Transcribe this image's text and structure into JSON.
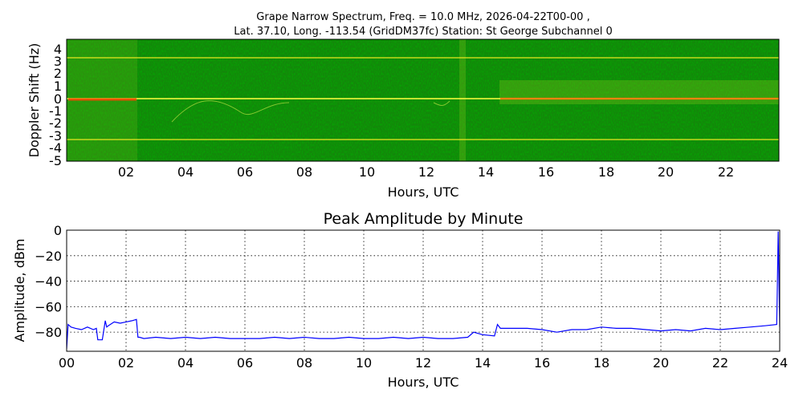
{
  "spectrogram": {
    "title_line1": "Grape Narrow Spectrum, Freq. = 10.0 MHz, 2026-04-22T00-00 ,",
    "title_line2": "Lat.  37.10, Long. -113.54 (GridDM37fc) Station: St George Subchannel 0",
    "ylabel": "Doppler Shift (Hz)",
    "xlabel": "Hours, UTC",
    "yticks": [
      "4",
      "3",
      "2",
      "1",
      "0",
      "-1",
      "-2",
      "-3",
      "-4",
      "-5"
    ],
    "xticks": [
      "02",
      "04",
      "06",
      "08",
      "10",
      "12",
      "14",
      "16",
      "18",
      "20",
      "22"
    ],
    "colors": {
      "background": "#138a0b",
      "bright": "#ffff00",
      "hot": "#ff3000"
    }
  },
  "chart_data": [
    {
      "type": "heatmap",
      "x_range_hours": [
        0,
        24
      ],
      "y_range_hz": [
        -5,
        5
      ],
      "persistent_lines_hz": [
        3.4,
        0.0,
        -3.2
      ],
      "features": [
        {
          "from_hour": 0.0,
          "to_hour": 2.4,
          "shift_hz": 0.0,
          "description": "strong carrier"
        },
        {
          "from_hour": 14.4,
          "to_hour": 24.0,
          "shift_hz": 0.1,
          "description": "strong carrier"
        }
      ]
    },
    {
      "type": "line",
      "title": "Peak Amplitude by Minute",
      "xlabel": "Hours, UTC",
      "ylabel": "Amplitude, dBm",
      "xlim": [
        0,
        24
      ],
      "ylim": [
        -95,
        0
      ],
      "grid": true,
      "xticks": [
        "00",
        "02",
        "04",
        "06",
        "08",
        "10",
        "12",
        "14",
        "16",
        "18",
        "20",
        "22",
        "24"
      ],
      "yticks": [
        "0",
        "−20",
        "−40",
        "−60",
        "−80"
      ],
      "ytick_values": [
        0,
        -20,
        -40,
        -60,
        -80
      ],
      "line_color": "#0000ff",
      "series": [
        {
          "x": [
            0.0,
            0.05,
            0.15,
            0.3,
            0.5,
            0.7,
            0.9,
            1.0,
            1.05,
            1.1,
            1.2,
            1.3,
            1.35,
            1.4,
            1.6,
            1.8,
            2.0,
            2.2,
            2.35,
            2.4,
            2.45,
            2.6,
            3.0,
            3.5,
            4.0,
            4.5,
            5.0,
            5.5,
            6.0,
            6.5,
            7.0,
            7.5,
            8.0,
            8.5,
            9.0,
            9.5,
            10.0,
            10.5,
            11.0,
            11.5,
            12.0,
            12.5,
            13.0,
            13.5,
            13.7,
            14.0,
            14.4,
            14.5,
            14.6,
            15.0,
            15.5,
            16.0,
            16.5,
            17.0,
            17.5,
            18.0,
            18.5,
            19.0,
            19.5,
            20.0,
            20.5,
            21.0,
            21.5,
            22.0,
            22.5,
            23.0,
            23.5,
            23.9,
            23.95,
            24.0
          ],
          "y": [
            -93,
            -74,
            -76,
            -77,
            -78,
            -76,
            -78,
            -77,
            -86,
            -86,
            -86,
            -71,
            -76,
            -75,
            -72,
            -73,
            -72,
            -71,
            -70,
            -84,
            -84,
            -85,
            -84,
            -85,
            -84,
            -85,
            -84,
            -85,
            -85,
            -85,
            -84,
            -85,
            -84,
            -85,
            -85,
            -84,
            -85,
            -85,
            -84,
            -85,
            -84,
            -85,
            -85,
            -84,
            -80,
            -82,
            -83,
            -74,
            -77,
            -77,
            -77,
            -78,
            -80,
            -78,
            -78,
            -76,
            -77,
            -77,
            -78,
            -79,
            -78,
            -79,
            -77,
            -78,
            -77,
            -76,
            -75,
            -74,
            -1,
            -76
          ]
        }
      ]
    }
  ]
}
